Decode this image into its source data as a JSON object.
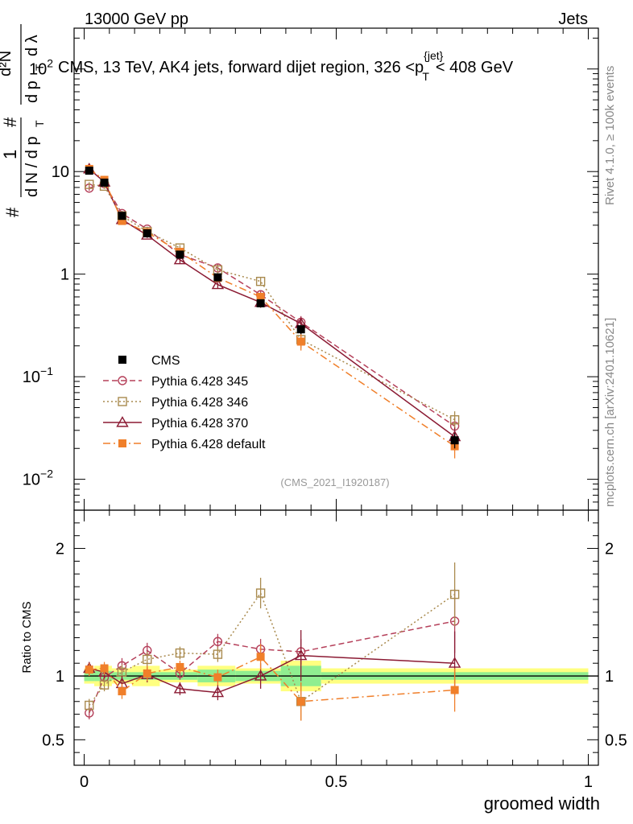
{
  "header": {
    "energy_label": "13000 GeV pp",
    "process_label": "Jets",
    "title_main": "CMS, 13 TeV, AK4 jets, forward dijet region, 326 <p",
    "title_sup": "{jet}",
    "title_sub": "T",
    "title_end": "< 408 GeV",
    "rivet_label": "Rivet 4.1.0, ≥ 100k events",
    "site_label": "mcplots.cern.ch [arXiv:2401.10621]",
    "analysis_tag": "(CMS_2021_I1920187)"
  },
  "chart_data": [
    {
      "type": "line",
      "panel": "main",
      "yscale": "log",
      "xlim": [
        -0.02,
        1.02
      ],
      "ylim": [
        0.005,
        250
      ],
      "ylabel": "1 / dN/dpT · d²N / dpT dλ",
      "ylabel_parts": {
        "hash": "#",
        "one": "1",
        "dn": "d N / d p",
        "t": "T",
        "d2n": "d²N",
        "dp": "d p",
        "dl": "d λ"
      },
      "y_ticks": [
        {
          "value": 0.01,
          "base": "10",
          "exp": "−2"
        },
        {
          "value": 0.1,
          "base": "10",
          "exp": "−1"
        },
        {
          "value": 1,
          "label": "1"
        },
        {
          "value": 10,
          "label": "10"
        },
        {
          "value": 100,
          "base": "10",
          "exp": "2"
        }
      ],
      "x": [
        0.01,
        0.04,
        0.075,
        0.125,
        0.19,
        0.265,
        0.35,
        0.43,
        0.735
      ],
      "series": [
        {
          "name": "CMS",
          "color": "#000000",
          "marker": "square-filled",
          "line": "none",
          "values": [
            10.2,
            7.8,
            3.7,
            2.5,
            1.55,
            0.93,
            0.52,
            0.29,
            0.024
          ],
          "errors": [
            0.5,
            0.4,
            0.2,
            0.13,
            0.09,
            0.06,
            0.04,
            0.03,
            0.004
          ]
        },
        {
          "name": "Pythia 6.428 345",
          "color": "#b5405a",
          "marker": "circle-open",
          "line": "dashed",
          "values": [
            6.9,
            7.6,
            3.9,
            2.75,
            1.55,
            1.15,
            0.63,
            0.34,
            0.033
          ],
          "errors": [
            0.4,
            0.4,
            0.25,
            0.15,
            0.12,
            0.1,
            0.06,
            0.05,
            0.007
          ]
        },
        {
          "name": "Pythia 6.428 346",
          "color": "#a98a4e",
          "marker": "square-open",
          "line": "dotted",
          "values": [
            7.5,
            7.2,
            3.7,
            2.6,
            1.8,
            1.1,
            0.85,
            0.23,
            0.038
          ],
          "errors": [
            0.4,
            0.4,
            0.25,
            0.15,
            0.12,
            0.1,
            0.07,
            0.04,
            0.008
          ]
        },
        {
          "name": "Pythia 6.428 370",
          "color": "#8b1a33",
          "marker": "triangle-open",
          "line": "solid",
          "values": [
            10.6,
            7.9,
            3.4,
            2.4,
            1.38,
            0.79,
            0.53,
            0.33,
            0.026
          ],
          "errors": [
            0.5,
            0.4,
            0.2,
            0.15,
            0.1,
            0.07,
            0.06,
            0.05,
            0.006
          ]
        },
        {
          "name": "Pythia 6.428 default",
          "color": "#f07f2a",
          "marker": "square-filled",
          "line": "dashdot",
          "values": [
            10.6,
            8.3,
            3.3,
            2.55,
            1.65,
            0.92,
            0.6,
            0.22,
            0.021
          ],
          "errors": [
            0.5,
            0.4,
            0.2,
            0.15,
            0.1,
            0.07,
            0.06,
            0.04,
            0.005
          ]
        }
      ]
    },
    {
      "type": "line",
      "panel": "ratio",
      "xlabel": "groomed width",
      "ylabel": "Ratio to CMS",
      "xlim": [
        -0.02,
        1.02
      ],
      "ylim": [
        0.3,
        2.3
      ],
      "y_ticks": [
        0.5,
        1,
        2
      ],
      "y_tick_labels": [
        "0.5",
        "1",
        "2"
      ],
      "x_ticks": [
        0,
        0.5,
        1
      ],
      "x_tick_labels": [
        "0",
        "0.5",
        "1"
      ],
      "bins": [
        [
          0.0,
          0.02
        ],
        [
          0.02,
          0.055
        ],
        [
          0.055,
          0.095
        ],
        [
          0.095,
          0.15
        ],
        [
          0.15,
          0.225
        ],
        [
          0.225,
          0.3
        ],
        [
          0.3,
          0.39
        ],
        [
          0.39,
          0.47
        ],
        [
          0.47,
          1.0
        ]
      ],
      "band_1sigma": [
        0.04,
        0.04,
        0.03,
        0.03,
        0.03,
        0.05,
        0.04,
        0.08,
        0.03
      ],
      "band_2sigma": [
        0.06,
        0.08,
        0.06,
        0.08,
        0.05,
        0.08,
        0.06,
        0.12,
        0.06
      ],
      "x": [
        0.01,
        0.04,
        0.075,
        0.125,
        0.19,
        0.265,
        0.35,
        0.43,
        0.735
      ],
      "series": [
        {
          "name": "Pythia 6.428 345",
          "values": [
            0.71,
            0.99,
            1.08,
            1.2,
            1.02,
            1.27,
            1.21,
            1.19,
            1.43
          ],
          "errors": [
            0.05,
            0.05,
            0.06,
            0.06,
            0.05,
            0.06,
            0.08,
            0.1,
            0.25
          ]
        },
        {
          "name": "Pythia 6.428 346",
          "values": [
            0.77,
            0.93,
            1.03,
            1.13,
            1.18,
            1.17,
            1.65,
            0.8,
            1.64
          ],
          "errors": [
            0.05,
            0.05,
            0.06,
            0.06,
            0.05,
            0.06,
            0.12,
            0.15,
            0.25
          ]
        },
        {
          "name": "Pythia 6.428 370",
          "values": [
            1.06,
            1.03,
            0.94,
            1.01,
            0.9,
            0.87,
            1.0,
            1.16,
            1.1
          ],
          "errors": [
            0.05,
            0.05,
            0.06,
            0.06,
            0.05,
            0.06,
            0.1,
            0.2,
            0.25
          ]
        },
        {
          "name": "Pythia 6.428 default",
          "values": [
            1.05,
            1.06,
            0.88,
            1.02,
            1.07,
            0.99,
            1.15,
            0.8,
            0.89
          ],
          "errors": [
            0.05,
            0.05,
            0.06,
            0.06,
            0.05,
            0.06,
            0.1,
            0.15,
            0.17
          ]
        }
      ]
    }
  ]
}
